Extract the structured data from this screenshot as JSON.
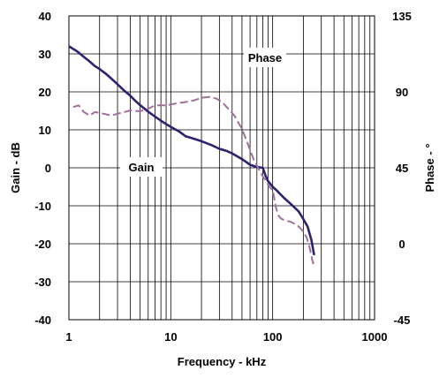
{
  "chart_data": {
    "type": "line",
    "xlabel": "Frequency - kHz",
    "ylabel": "Gain - dB",
    "y2label": "Phase - °",
    "xscale": "log",
    "xlim": [
      1,
      1000
    ],
    "ylim": [
      -40,
      40
    ],
    "y2lim": [
      -45,
      135
    ],
    "x_ticks": [
      "1",
      "10",
      "100",
      "1000"
    ],
    "y_ticks": [
      "40",
      "30",
      "20",
      "10",
      "0",
      "-10",
      "-20",
      "-30",
      "-40"
    ],
    "y2_ticks": [
      "135",
      "90",
      "45",
      "0",
      "-45"
    ],
    "grid": true,
    "annotations": [
      "Gain",
      "Phase"
    ],
    "series": [
      {
        "name": "Gain",
        "axis": "left",
        "style": "solid",
        "color": "#2b2370",
        "points": [
          [
            1.0,
            32.0
          ],
          [
            1.2,
            30.7
          ],
          [
            1.4,
            29.2
          ],
          [
            1.6,
            28.0
          ],
          [
            1.8,
            26.8
          ],
          [
            2.0,
            26.0
          ],
          [
            2.3,
            24.8
          ],
          [
            2.6,
            23.5
          ],
          [
            3.0,
            22.0
          ],
          [
            3.5,
            20.3
          ],
          [
            4.0,
            19.0
          ],
          [
            4.5,
            17.6
          ],
          [
            5.0,
            16.5
          ],
          [
            6.0,
            14.8
          ],
          [
            7.0,
            13.5
          ],
          [
            8.0,
            12.4
          ],
          [
            9.0,
            11.5
          ],
          [
            10.0,
            10.8
          ],
          [
            12.0,
            9.6
          ],
          [
            14.0,
            8.3
          ],
          [
            17.0,
            7.6
          ],
          [
            20.0,
            7.0
          ],
          [
            25.0,
            6.0
          ],
          [
            30.0,
            5.0
          ],
          [
            35.0,
            4.5
          ],
          [
            40.0,
            3.8
          ],
          [
            45.0,
            3.0
          ],
          [
            50.0,
            2.3
          ],
          [
            60.0,
            0.8
          ],
          [
            70.0,
            0.2
          ],
          [
            80.0,
            0.0
          ],
          [
            85.0,
            -2.0
          ],
          [
            90.0,
            -3.5
          ],
          [
            100.0,
            -5.0
          ],
          [
            110.0,
            -6.0
          ],
          [
            130.0,
            -8.0
          ],
          [
            150.0,
            -9.5
          ],
          [
            180.0,
            -11.5
          ],
          [
            200.0,
            -13.5
          ],
          [
            220.0,
            -15.5
          ],
          [
            240.0,
            -19.0
          ],
          [
            255.0,
            -23.0
          ]
        ]
      },
      {
        "name": "Phase",
        "axis": "right",
        "style": "dashed",
        "color": "#a0709a",
        "points": [
          [
            1.1,
            81.0
          ],
          [
            1.25,
            82.0
          ],
          [
            1.4,
            78.0
          ],
          [
            1.6,
            76.0
          ],
          [
            1.8,
            78.0
          ],
          [
            2.2,
            77.0
          ],
          [
            2.6,
            76.0
          ],
          [
            3.0,
            77.0
          ],
          [
            3.5,
            78.0
          ],
          [
            4.0,
            79.0
          ],
          [
            5.0,
            78.5
          ],
          [
            6.0,
            80.0
          ],
          [
            7.0,
            82.0
          ],
          [
            9.0,
            82.0
          ],
          [
            11.0,
            83.0
          ],
          [
            14.0,
            84.0
          ],
          [
            17.0,
            85.0
          ],
          [
            20.0,
            86.5
          ],
          [
            24.0,
            87.0
          ],
          [
            28.0,
            86.0
          ],
          [
            32.0,
            84.0
          ],
          [
            36.0,
            80.5
          ],
          [
            42.0,
            76.0
          ],
          [
            50.0,
            68.0
          ],
          [
            58.0,
            58.0
          ],
          [
            65.0,
            50.0
          ],
          [
            72.0,
            45.0
          ],
          [
            80.0,
            40.0
          ],
          [
            88.0,
            36.0
          ],
          [
            95.0,
            33.0
          ],
          [
            100.0,
            32.0
          ],
          [
            103.0,
            28.0
          ],
          [
            107.0,
            22.0
          ],
          [
            113.0,
            17.0
          ],
          [
            120.0,
            15.0
          ],
          [
            130.0,
            14.0
          ],
          [
            150.0,
            13.0
          ],
          [
            175.0,
            11.0
          ],
          [
            195.0,
            8.0
          ],
          [
            215.0,
            4.0
          ],
          [
            230.0,
            -2.0
          ],
          [
            245.0,
            -10.0
          ],
          [
            255.0,
            -13.0
          ]
        ]
      }
    ]
  }
}
